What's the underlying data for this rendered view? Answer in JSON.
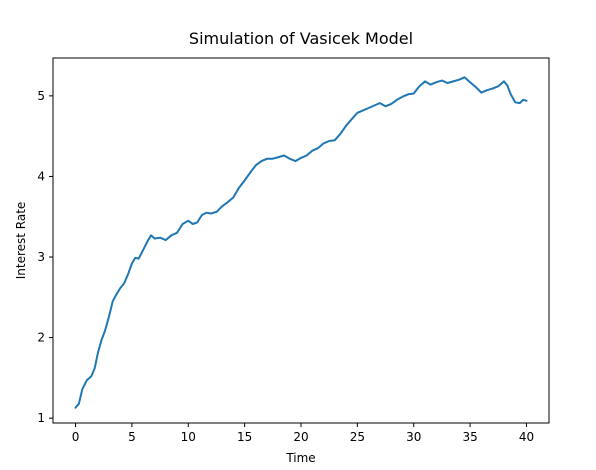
{
  "chart_data": {
    "type": "line",
    "title": "Simulation of Vasicek Model",
    "xlabel": "Time",
    "ylabel": "Interest Rate",
    "xlim": [
      -2,
      42
    ],
    "ylim": [
      0.94,
      5.47
    ],
    "xticks": [
      0,
      5,
      10,
      15,
      20,
      25,
      30,
      35,
      40
    ],
    "yticks": [
      1,
      2,
      3,
      4,
      5
    ],
    "grid": false,
    "series": [
      {
        "color": "#1f77b4",
        "points": [
          [
            0.0,
            1.13
          ],
          [
            0.3,
            1.18
          ],
          [
            0.6,
            1.36
          ],
          [
            1.0,
            1.47
          ],
          [
            1.4,
            1.52
          ],
          [
            1.7,
            1.62
          ],
          [
            2.0,
            1.82
          ],
          [
            2.3,
            1.97
          ],
          [
            2.6,
            2.08
          ],
          [
            3.0,
            2.28
          ],
          [
            3.3,
            2.45
          ],
          [
            3.6,
            2.53
          ],
          [
            4.0,
            2.62
          ],
          [
            4.3,
            2.67
          ],
          [
            4.7,
            2.8
          ],
          [
            5.0,
            2.92
          ],
          [
            5.3,
            2.99
          ],
          [
            5.6,
            2.98
          ],
          [
            6.0,
            3.09
          ],
          [
            6.4,
            3.2
          ],
          [
            6.7,
            3.27
          ],
          [
            7.0,
            3.23
          ],
          [
            7.5,
            3.24
          ],
          [
            8.0,
            3.21
          ],
          [
            8.5,
            3.27
          ],
          [
            9.0,
            3.3
          ],
          [
            9.5,
            3.41
          ],
          [
            10.0,
            3.45
          ],
          [
            10.4,
            3.41
          ],
          [
            10.8,
            3.43
          ],
          [
            11.2,
            3.52
          ],
          [
            11.6,
            3.55
          ],
          [
            12.0,
            3.54
          ],
          [
            12.5,
            3.56
          ],
          [
            13.0,
            3.63
          ],
          [
            13.5,
            3.68
          ],
          [
            14.0,
            3.74
          ],
          [
            14.5,
            3.86
          ],
          [
            15.0,
            3.95
          ],
          [
            15.5,
            4.05
          ],
          [
            16.0,
            4.14
          ],
          [
            16.5,
            4.19
          ],
          [
            17.0,
            4.22
          ],
          [
            17.5,
            4.22
          ],
          [
            18.0,
            4.24
          ],
          [
            18.5,
            4.26
          ],
          [
            19.0,
            4.22
          ],
          [
            19.5,
            4.19
          ],
          [
            20.0,
            4.23
          ],
          [
            20.5,
            4.26
          ],
          [
            21.0,
            4.32
          ],
          [
            21.5,
            4.35
          ],
          [
            22.0,
            4.41
          ],
          [
            22.5,
            4.44
          ],
          [
            23.0,
            4.45
          ],
          [
            23.5,
            4.53
          ],
          [
            24.0,
            4.63
          ],
          [
            24.5,
            4.71
          ],
          [
            25.0,
            4.79
          ],
          [
            25.5,
            4.82
          ],
          [
            26.0,
            4.85
          ],
          [
            26.5,
            4.88
          ],
          [
            27.0,
            4.91
          ],
          [
            27.5,
            4.87
          ],
          [
            28.0,
            4.9
          ],
          [
            28.5,
            4.95
          ],
          [
            29.0,
            4.99
          ],
          [
            29.5,
            5.02
          ],
          [
            30.0,
            5.03
          ],
          [
            30.5,
            5.12
          ],
          [
            31.0,
            5.18
          ],
          [
            31.5,
            5.14
          ],
          [
            32.0,
            5.17
          ],
          [
            32.5,
            5.19
          ],
          [
            33.0,
            5.16
          ],
          [
            33.5,
            5.18
          ],
          [
            34.0,
            5.2
          ],
          [
            34.5,
            5.23
          ],
          [
            35.0,
            5.17
          ],
          [
            35.5,
            5.11
          ],
          [
            36.0,
            5.04
          ],
          [
            36.5,
            5.07
          ],
          [
            37.0,
            5.09
          ],
          [
            37.5,
            5.12
          ],
          [
            38.0,
            5.18
          ],
          [
            38.3,
            5.13
          ],
          [
            38.6,
            5.02
          ],
          [
            39.0,
            4.92
          ],
          [
            39.4,
            4.91
          ],
          [
            39.7,
            4.95
          ],
          [
            40.0,
            4.94
          ]
        ]
      }
    ]
  }
}
